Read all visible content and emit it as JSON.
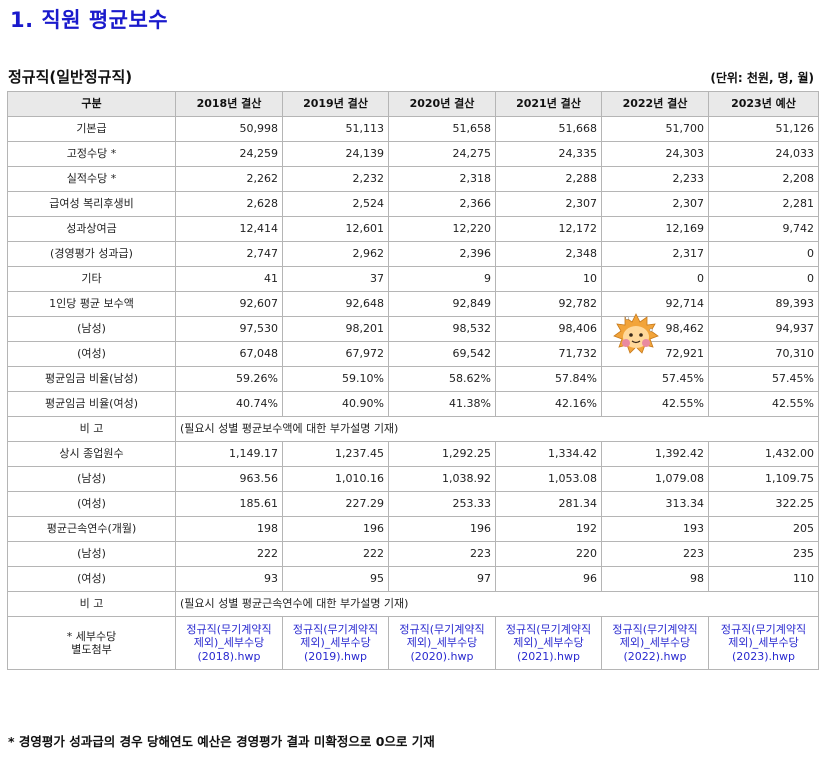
{
  "title": "1. 직원 평균보수",
  "subtitle": "정규직(일반정규직)",
  "unit": "(단위: 천원, 명, 월)",
  "header": [
    "구분",
    "2018년 결산",
    "2019년 결산",
    "2020년 결산",
    "2021년 결산",
    "2022년 결산",
    "2023년 예산"
  ],
  "rows1": [
    {
      "label": "기본급",
      "values": [
        "50,998",
        "51,113",
        "51,658",
        "51,668",
        "51,700",
        "51,126"
      ]
    },
    {
      "label": "고정수당 *",
      "values": [
        "24,259",
        "24,139",
        "24,275",
        "24,335",
        "24,303",
        "24,033"
      ]
    },
    {
      "label": "실적수당 *",
      "values": [
        "2,262",
        "2,232",
        "2,318",
        "2,288",
        "2,233",
        "2,208"
      ]
    },
    {
      "label": "급여성 복리후생비",
      "values": [
        "2,628",
        "2,524",
        "2,366",
        "2,307",
        "2,307",
        "2,281"
      ]
    },
    {
      "label": "성과상여금",
      "values": [
        "12,414",
        "12,601",
        "12,220",
        "12,172",
        "12,169",
        "9,742"
      ]
    },
    {
      "label": "(경영평가 성과급)",
      "values": [
        "2,747",
        "2,962",
        "2,396",
        "2,348",
        "2,317",
        "0"
      ]
    },
    {
      "label": "기타",
      "values": [
        "41",
        "37",
        "9",
        "10",
        "0",
        "0"
      ]
    },
    {
      "label": "1인당 평균 보수액",
      "values": [
        "92,607",
        "92,648",
        "92,849",
        "92,782",
        "92,714",
        "89,393"
      ]
    },
    {
      "label": "(남성)",
      "values": [
        "97,530",
        "98,201",
        "98,532",
        "98,406",
        "98,462",
        "94,937"
      ]
    },
    {
      "label": "(여성)",
      "values": [
        "67,048",
        "67,972",
        "69,542",
        "71,732",
        "72,921",
        "70,310"
      ]
    },
    {
      "label": "평균임금 비율(남성)",
      "values": [
        "59.26%",
        "59.10%",
        "58.62%",
        "57.84%",
        "57.45%",
        "57.45%"
      ]
    },
    {
      "label": "평균임금 비율(여성)",
      "values": [
        "40.74%",
        "40.90%",
        "41.38%",
        "42.16%",
        "42.55%",
        "42.55%"
      ]
    }
  ],
  "note1": {
    "label": "비 고",
    "text": "(필요시 성별 평균보수액에 대한 부가설명 기재)"
  },
  "rows2": [
    {
      "label": "상시 종업원수",
      "values": [
        "1,149.17",
        "1,237.45",
        "1,292.25",
        "1,334.42",
        "1,392.42",
        "1,432.00"
      ]
    },
    {
      "label": "(남성)",
      "values": [
        "963.56",
        "1,010.16",
        "1,038.92",
        "1,053.08",
        "1,079.08",
        "1,109.75"
      ]
    },
    {
      "label": "(여성)",
      "values": [
        "185.61",
        "227.29",
        "253.33",
        "281.34",
        "313.34",
        "322.25"
      ]
    },
    {
      "label": "평균근속연수(개월)",
      "values": [
        "198",
        "196",
        "196",
        "192",
        "193",
        "205"
      ]
    },
    {
      "label": "(남성)",
      "values": [
        "222",
        "222",
        "223",
        "220",
        "223",
        "235"
      ]
    },
    {
      "label": "(여성)",
      "values": [
        "93",
        "95",
        "97",
        "96",
        "98",
        "110"
      ]
    }
  ],
  "note2": {
    "label": "비 고",
    "text": "(필요시 성별 평균근속연수에 대한 부가설명 기재)"
  },
  "attachments": {
    "label_line1": "* 세부수당",
    "label_line2": "별도첨부",
    "files": [
      {
        "line1": "정규직(무기계약직",
        "line2": "제외)_세부수당",
        "line3": "(2018).hwp"
      },
      {
        "line1": "정규직(무기계약직",
        "line2": "제외)_세부수당",
        "line3": "(2019).hwp"
      },
      {
        "line1": "정규직(무기계약직",
        "line2": "제외)_세부수당",
        "line3": "(2020).hwp"
      },
      {
        "line1": "정규직(무기계약직",
        "line2": "제외)_세부수당",
        "line3": "(2021).hwp"
      },
      {
        "line1": "정규직(무기계약직",
        "line2": "제외)_세부수당",
        "line3": "(2022).hwp"
      },
      {
        "line1": "정규직(무기계약직",
        "line2": "제외)_세부수당",
        "line3": "(2023).hwp"
      }
    ]
  },
  "footnote": "* 경영평가 성과급의 경우 당해연도 예산은 경영평가 결과 미확정으로 0으로 기재",
  "colors": {
    "title": "#1a1acc",
    "link": "#2a2ad0",
    "header_bg": "#e9e9e9",
    "border": "#b5b5b5"
  },
  "icons": {
    "sticker": "hedgehog-sticker-icon"
  }
}
